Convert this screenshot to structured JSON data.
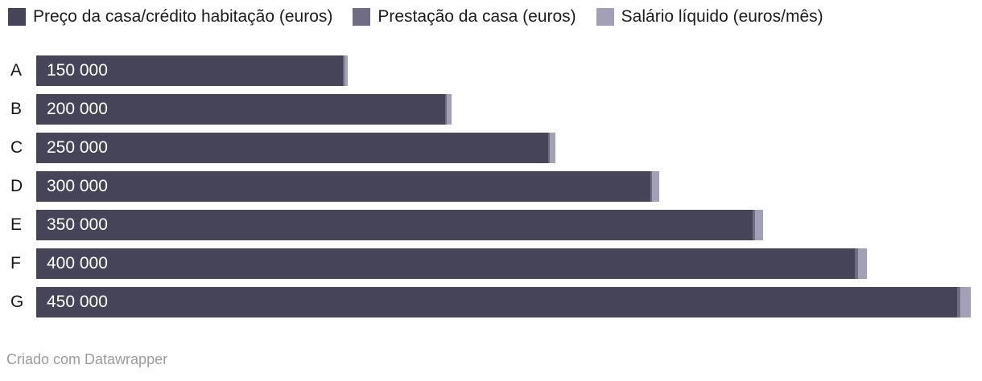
{
  "chart_data": {
    "type": "bar",
    "orientation": "horizontal",
    "stacked": true,
    "title": "",
    "xlabel": "",
    "ylabel": "",
    "grid": false,
    "legend_position": "top",
    "xlim": [
      0,
      458000
    ],
    "categories": [
      "A",
      "B",
      "C",
      "D",
      "E",
      "F",
      "G"
    ],
    "series": [
      {
        "name": "Preço da casa/crédito habitação (euros)",
        "color": "#464458",
        "values": [
          150000,
          200000,
          250000,
          300000,
          350000,
          400000,
          450000
        ]
      },
      {
        "name": "Prestação da casa (euros)",
        "color": "#706c84",
        "values": [
          550,
          730,
          920,
          1100,
          1280,
          1460,
          1650
        ]
      },
      {
        "name": "Salário líquido (euros/mês)",
        "color": "#a2a0b6",
        "values": [
          1650,
          2200,
          2750,
          3300,
          3850,
          4400,
          4950
        ]
      }
    ],
    "bar_labels": [
      "150 000",
      "200 000",
      "250 000",
      "300 000",
      "350 000",
      "400 000",
      "450 000"
    ]
  },
  "legend": {
    "items": [
      {
        "label": "Preço da casa/crédito habitação (euros)",
        "color": "#464458"
      },
      {
        "label": "Prestação da casa (euros)",
        "color": "#706c84"
      },
      {
        "label": "Salário líquido (euros/mês)",
        "color": "#a2a0b6"
      }
    ]
  },
  "footer": {
    "text": "Criado com Datawrapper"
  },
  "colors": {
    "bar_primary": "#464458",
    "bar_secondary": "#706c84",
    "bar_tertiary": "#a2a0b6",
    "row_label_text": "#161616",
    "value_label_text": "#ffffff",
    "legend_text": "#1d1d1d",
    "footer_text": "#9b9b9b",
    "background": "#ffffff"
  }
}
